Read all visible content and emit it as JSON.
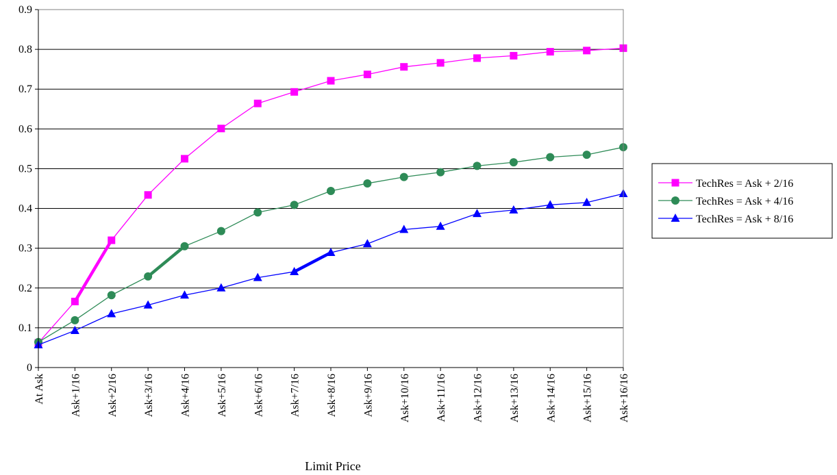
{
  "chart_data": {
    "type": "line",
    "title": "",
    "xlabel": "Limit Price",
    "ylabel": "",
    "ylim": [
      0,
      0.9
    ],
    "yticks": [
      "0",
      "0.1",
      "0.2",
      "0.3",
      "0.4",
      "0.5",
      "0.6",
      "0.7",
      "0.8",
      "0.9"
    ],
    "grid": "horizontal",
    "legend_position": "right",
    "categories": [
      "At Ask",
      "Ask+1/16",
      "Ask+2/16",
      "Ask+3/16",
      "Ask+4/16",
      "Ask+5/16",
      "Ask+6/16",
      "Ask+7/16",
      "Ask+8/16",
      "Ask+9/16",
      "Ask+10/16",
      "Ask+11/16",
      "Ask+12/16",
      "Ask+13/16",
      "Ask+14/16",
      "Ask+15/16",
      "Ask+16/16"
    ],
    "series": [
      {
        "name": "TechRes = Ask + 2/16",
        "color": "#ff00ff",
        "marker": "square",
        "values": [
          0.062,
          0.166,
          0.32,
          0.434,
          0.525,
          0.601,
          0.664,
          0.693,
          0.721,
          0.737,
          0.756,
          0.766,
          0.778,
          0.784,
          0.794,
          0.797,
          0.803
        ],
        "highlight_segment": [
          1,
          2
        ]
      },
      {
        "name": "TechRes = Ask + 4/16",
        "color": "#2e8b57",
        "marker": "circle",
        "values": [
          0.064,
          0.119,
          0.182,
          0.229,
          0.305,
          0.343,
          0.39,
          0.409,
          0.444,
          0.463,
          0.479,
          0.491,
          0.507,
          0.516,
          0.529,
          0.535,
          0.554
        ],
        "highlight_segment": [
          3,
          4
        ]
      },
      {
        "name": "TechRes = Ask + 8/16",
        "color": "#0000ff",
        "marker": "triangle",
        "values": [
          0.057,
          0.093,
          0.135,
          0.157,
          0.182,
          0.2,
          0.226,
          0.241,
          0.289,
          0.311,
          0.347,
          0.355,
          0.387,
          0.396,
          0.409,
          0.415,
          0.437
        ],
        "highlight_segment": [
          7,
          8
        ]
      }
    ]
  }
}
